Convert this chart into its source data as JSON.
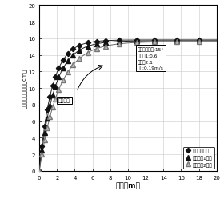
{
  "title": "",
  "xlabel": "距離（m）",
  "ylabel": "基準線からの距離（cm）",
  "xlim": [
    0,
    20
  ],
  "ylim": [
    0,
    20
  ],
  "xticks": [
    0,
    2,
    4,
    6,
    8,
    10,
    12,
    14,
    16,
    18,
    20
  ],
  "yticks": [
    0,
    2,
    4,
    6,
    8,
    10,
    12,
    14,
    16,
    18,
    20
  ],
  "annotation_text": "トラクタ偶角:15°\nゲイン1:0.6\nゲイン2:1\n速度:0.19m/s",
  "direction_text": "進行方向",
  "legend_labels": [
    "トラクタ軌跡",
    "トレーラ1軌跡",
    "トレーラ2軌跡"
  ],
  "A_tractor": 15.8,
  "k_tractor": 0.7,
  "A_trailer1": 15.7,
  "k_trailer1": 0.58,
  "A_trailer2": 15.6,
  "k_trailer2": 0.45,
  "background_color": "#ffffff",
  "grid_color": "#c8c8c8"
}
